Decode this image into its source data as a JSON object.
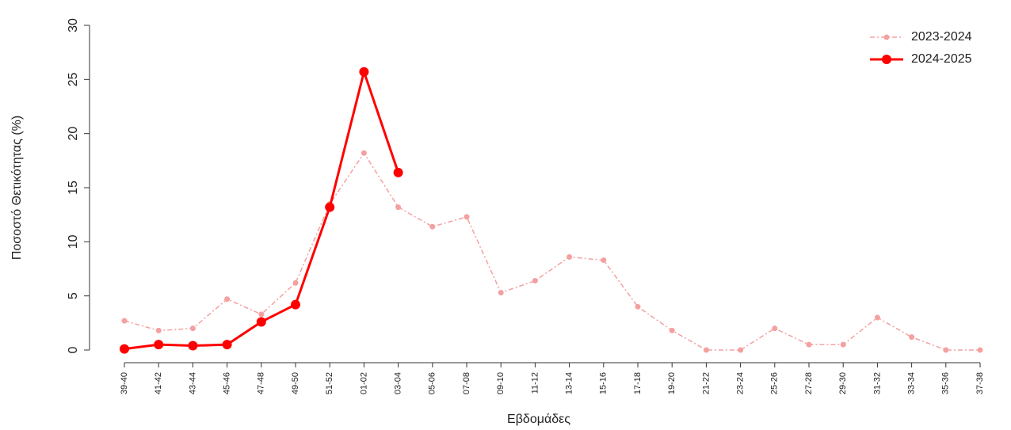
{
  "chart_data": {
    "type": "line",
    "xlabel": "Εβδομάδες",
    "ylabel": "Ποσοστό Θετικότητας (%)",
    "categories": [
      "39-40",
      "41-42",
      "43-44",
      "45-46",
      "47-48",
      "49-50",
      "51-52",
      "01-02",
      "03-04",
      "05-06",
      "07-08",
      "09-10",
      "11-12",
      "13-14",
      "15-16",
      "17-18",
      "19-20",
      "21-22",
      "23-24",
      "25-26",
      "27-28",
      "29-30",
      "31-32",
      "33-34",
      "35-36",
      "37-38"
    ],
    "series": [
      {
        "name": "2023-2024",
        "color": "#f4a0a0",
        "dashed": true,
        "values": [
          2.7,
          1.8,
          2.0,
          4.7,
          3.3,
          6.2,
          13.5,
          18.2,
          13.2,
          11.4,
          12.3,
          5.3,
          6.4,
          8.6,
          8.3,
          4.0,
          1.8,
          0,
          0,
          2.0,
          0.5,
          0.5,
          3.0,
          1.2,
          0,
          0
        ]
      },
      {
        "name": "2024-2025",
        "color": "#ff0000",
        "dashed": false,
        "values": [
          0.1,
          0.5,
          0.4,
          0.5,
          2.6,
          4.2,
          13.2,
          25.7,
          16.4,
          null,
          null,
          null,
          null,
          null,
          null,
          null,
          null,
          null,
          null,
          null,
          null,
          null,
          null,
          null,
          null,
          null
        ]
      }
    ],
    "ylim": [
      0,
      30
    ],
    "yticks": [
      0,
      5,
      10,
      15,
      20,
      25,
      30
    ],
    "legend": "top-right"
  }
}
